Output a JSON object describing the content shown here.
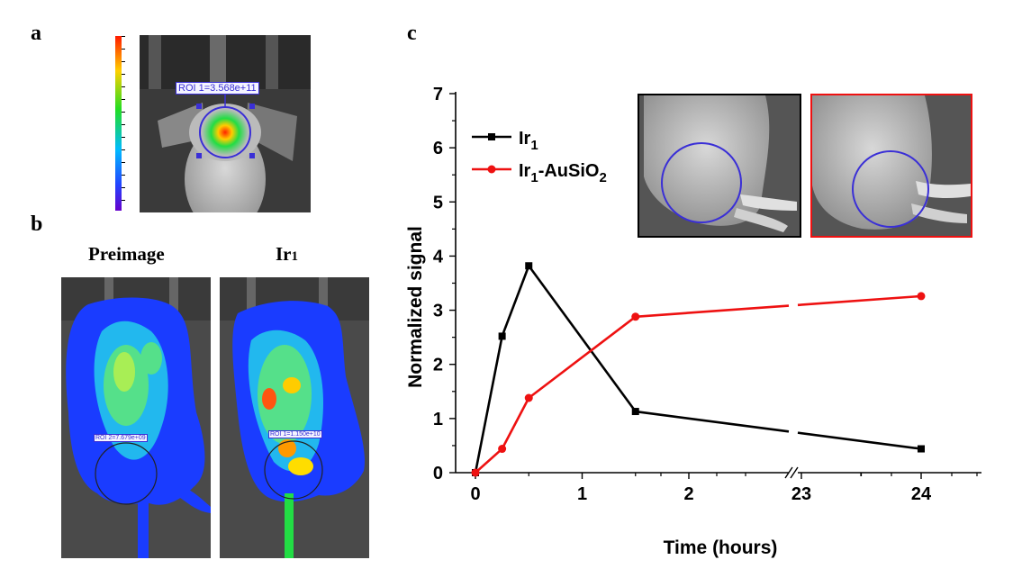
{
  "panels": {
    "a": "a",
    "b": "b",
    "c": "c"
  },
  "panel_a": {
    "roi_label": "ROI 1=3.568e+11"
  },
  "panel_b": {
    "left_title": "Preimage",
    "right_title_main": "Ir",
    "right_title_sub": "1",
    "left_roi_label": "ROI 2=7.679e+09",
    "right_roi_label": "ROI 1=1.150e+10"
  },
  "colors": {
    "ir1": "#000000",
    "ir1_ausio2": "#ee1111",
    "roi_circle": "#3a2fd6"
  },
  "chart_data": {
    "type": "line",
    "xlabel": "Time (hours)",
    "ylabel": "Normalized signal",
    "x_tick_labels": [
      "0",
      "1",
      "2",
      "23",
      "24"
    ],
    "y_tick_labels": [
      "0",
      "1",
      "2",
      "3",
      "4",
      "5",
      "6",
      "7"
    ],
    "ylim": [
      0,
      7
    ],
    "x_axis_break": "between 2 and 23",
    "legend_position": "top-left",
    "series": [
      {
        "name_main": "Ir",
        "name_sub": "1",
        "name_tail": "",
        "name_tail_sub": "",
        "marker": "square",
        "color": "#000000",
        "x": [
          0,
          0.25,
          0.5,
          1.5,
          24
        ],
        "y": [
          0.0,
          2.52,
          3.82,
          1.13,
          0.44
        ]
      },
      {
        "name_main": "Ir",
        "name_sub": "1",
        "name_tail": "-AuSiO",
        "name_tail_sub": "2",
        "marker": "circle",
        "color": "#ee1111",
        "x": [
          0,
          0.25,
          0.5,
          1.5,
          24
        ],
        "y": [
          0.0,
          0.44,
          1.38,
          2.88,
          3.26
        ]
      }
    ]
  }
}
